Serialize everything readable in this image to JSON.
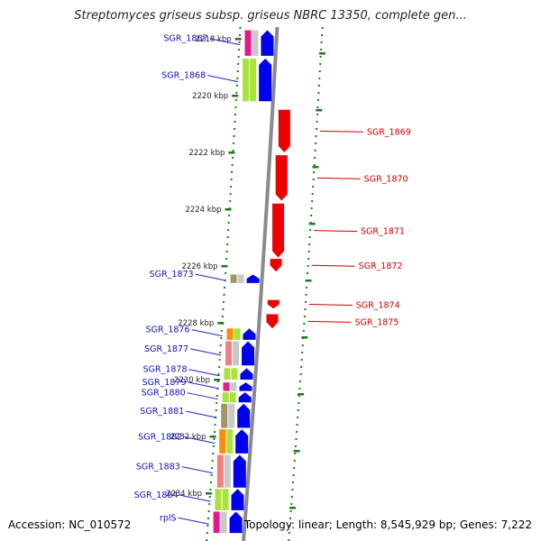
{
  "title": "Streptomyces griseus subsp. griseus NBRC 13350, complete gen...",
  "footer": {
    "accession": "Accession: NC_010572",
    "summary": "Topology: linear; Length: 8,545,929 bp; Genes: 7,222"
  },
  "ruler": {
    "ticks": [
      {
        "label": "2218 kbp",
        "pos": 2218
      },
      {
        "label": "2220 kbp",
        "pos": 2220
      },
      {
        "label": "2222 kbp",
        "pos": 2222
      },
      {
        "label": "2224 kbp",
        "pos": 2224
      },
      {
        "label": "2226 kbp",
        "pos": 2226
      },
      {
        "label": "2228 kbp",
        "pos": 2228
      },
      {
        "label": "2230 kbp",
        "pos": 2230
      },
      {
        "label": "2232 kbp",
        "pos": 2232
      },
      {
        "label": "2234 kbp",
        "pos": 2234
      }
    ]
  },
  "genes": {
    "forward": [
      {
        "name": "SGR_1867",
        "start": 2217.7,
        "end": 2218.6
      },
      {
        "name": "SGR_1868",
        "start": 2218.7,
        "end": 2220.2
      },
      {
        "name": "SGR_1873",
        "start": 2226.3,
        "end": 2226.6
      },
      {
        "name": "SGR_1876",
        "start": 2228.2,
        "end": 2228.6
      },
      {
        "name": "SGR_1877",
        "start": 2228.65,
        "end": 2229.5
      },
      {
        "name": "SGR_1878",
        "start": 2229.6,
        "end": 2230.0
      },
      {
        "name": "SGR_1879",
        "start": 2230.1,
        "end": 2230.4
      },
      {
        "name": "SGR_1880",
        "start": 2230.45,
        "end": 2230.8
      },
      {
        "name": "SGR_1881",
        "start": 2230.85,
        "end": 2231.7
      },
      {
        "name": "SGR_1882",
        "start": 2231.75,
        "end": 2232.6
      },
      {
        "name": "SGR_1883",
        "start": 2232.65,
        "end": 2233.8
      },
      {
        "name": "SGR_1884",
        "start": 2233.85,
        "end": 2234.6
      },
      {
        "name": "rplS",
        "start": 2234.65,
        "end": 2235.4
      }
    ],
    "reverse": [
      {
        "name": "SGR_1869",
        "start": 2220.5,
        "end": 2222.0
      },
      {
        "name": "SGR_1870",
        "start": 2222.1,
        "end": 2223.7
      },
      {
        "name": "SGR_1871",
        "start": 2223.8,
        "end": 2225.7
      },
      {
        "name": "SGR_1872",
        "start": 2225.75,
        "end": 2226.2
      },
      {
        "name": "SGR_1874",
        "start": 2227.2,
        "end": 2227.5
      },
      {
        "name": "SGR_1875",
        "start": 2227.7,
        "end": 2228.2
      }
    ]
  },
  "colors": {
    "forward": "#0000ee",
    "reverse": "#ee0000",
    "label_forward": "#1111bb",
    "label_reverse": "#cc0000",
    "ruler": "#1f7a1f",
    "backbone": "#8a8a8a",
    "cog_magenta": "#e6198c",
    "cog_green": "#a8e23a",
    "cog_olive": "#a39563",
    "cog_orange": "#ff8c00",
    "cog_pink": "#f08080"
  }
}
